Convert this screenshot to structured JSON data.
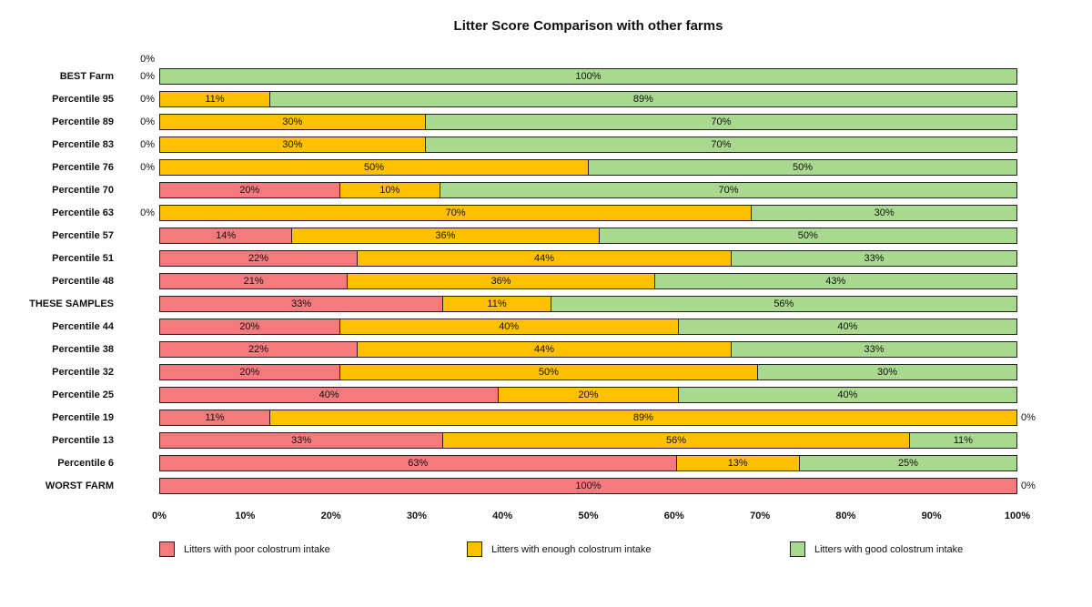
{
  "chart_data": {
    "type": "bar",
    "orientation": "horizontal",
    "stacked": true,
    "title": "Litter Score Comparison with other farms",
    "categories": [
      "BEST Farm",
      "Percentile 95",
      "Percentile 89",
      "Percentile 83",
      "Percentile 76",
      "Percentile 70",
      "Percentile 63",
      "Percentile 57",
      "Percentile 51",
      "Percentile 48",
      "THESE SAMPLES",
      "Percentile 44",
      "Percentile 38",
      "Percentile 32",
      "Percentile 25",
      "Percentile 19",
      "Percentile 13",
      "Percentile 6",
      "WORST FARM"
    ],
    "series": [
      {
        "key": "poor",
        "name": "Litters with poor colostrum intake",
        "color": "#F5797D",
        "values": [
          0,
          0,
          0,
          0,
          0,
          20,
          0,
          14,
          22,
          21,
          33,
          20,
          22,
          20,
          40,
          11,
          33,
          63,
          100
        ]
      },
      {
        "key": "enough",
        "name": "Litters with enough colostrum intake",
        "color": "#FFC000",
        "values": [
          0,
          11,
          30,
          30,
          50,
          10,
          70,
          36,
          44,
          36,
          11,
          40,
          44,
          50,
          20,
          89,
          56,
          13,
          0
        ]
      },
      {
        "key": "good",
        "name": "Litters with good colostrum intake",
        "color": "#A9D98F",
        "values": [
          100,
          89,
          70,
          70,
          50,
          70,
          30,
          50,
          33,
          43,
          56,
          40,
          33,
          30,
          40,
          0,
          11,
          25,
          0
        ]
      }
    ],
    "data_label_suffix": "%",
    "zero_label": "0%",
    "x_axis": {
      "min": 0,
      "max": 100,
      "ticks": [
        "0%",
        "10%",
        "20%",
        "30%",
        "40%",
        "50%",
        "60%",
        "70%",
        "80%",
        "90%",
        "100%"
      ]
    },
    "legend_position": "bottom",
    "grid": false,
    "colors": {
      "border": "#222222",
      "text": "#111111",
      "background": "#FFFFFF"
    }
  }
}
